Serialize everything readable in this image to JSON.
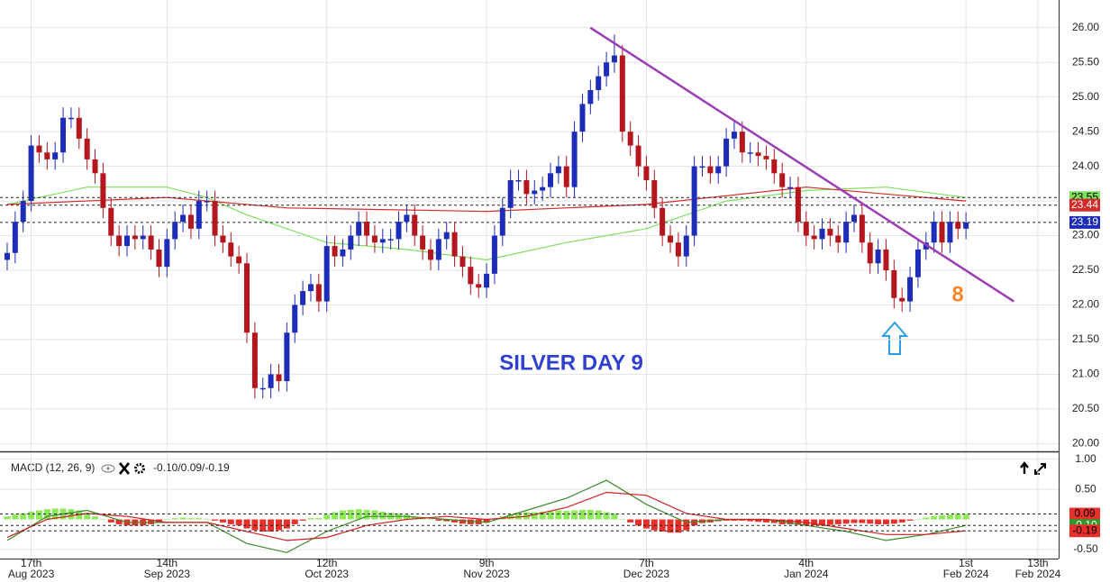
{
  "chart_data": [
    {
      "type": "candlestick",
      "annotations": [
        {
          "text": "SILVER DAY 9",
          "color": "#2f3fd0"
        },
        {
          "text": "8",
          "color": "#f5862a"
        }
      ],
      "open": [
        22.65,
        22.75,
        23.2,
        23.5,
        24.3,
        24.2,
        24.1,
        24.2,
        24.7,
        24.7,
        24.4,
        24.1,
        23.9,
        23.4,
        23.0,
        22.85,
        23.0,
        22.95,
        23.0,
        22.8,
        22.55,
        22.95,
        23.2,
        23.3,
        23.1,
        23.5,
        23.5,
        23.0,
        22.9,
        22.7,
        22.6,
        21.6,
        20.8,
        20.8,
        21.0,
        20.9,
        21.6,
        22.0,
        22.2,
        22.3,
        22.05,
        22.85,
        22.7,
        22.8,
        23.0,
        23.2,
        23.0,
        22.9,
        22.95,
        22.95,
        23.2,
        23.3,
        23.0,
        22.8,
        22.65,
        22.95,
        23.05,
        22.7,
        22.55,
        22.3,
        22.25,
        22.45,
        23.0,
        23.4,
        23.8,
        23.8,
        23.6,
        23.65,
        23.7,
        23.9,
        24.0,
        23.7,
        24.5,
        24.9,
        25.1,
        25.3,
        25.5,
        25.6,
        24.5,
        24.3,
        24.0,
        23.8,
        23.4,
        23.0,
        22.9,
        22.7,
        23.0,
        24.0,
        24.0,
        23.9,
        24.0,
        24.4,
        24.5,
        24.2,
        24.2,
        24.15,
        24.1,
        23.9,
        23.7,
        23.7,
        23.2,
        23.0,
        22.95,
        23.1,
        23.0,
        22.9,
        23.2,
        23.3,
        22.9,
        22.6,
        22.8,
        22.5,
        22.1,
        22.05,
        22.4,
        22.8,
        22.9,
        23.2,
        22.9,
        23.2,
        23.1
      ],
      "high": [
        22.9,
        23.35,
        23.65,
        24.45,
        24.45,
        24.35,
        24.35,
        24.85,
        24.85,
        24.85,
        24.55,
        24.25,
        24.05,
        23.55,
        23.15,
        23.15,
        23.15,
        23.15,
        23.15,
        22.95,
        23.1,
        23.35,
        23.45,
        23.45,
        23.65,
        23.65,
        23.65,
        23.15,
        23.05,
        22.85,
        22.75,
        21.75,
        20.95,
        21.15,
        21.15,
        21.75,
        22.15,
        22.35,
        22.45,
        22.45,
        23.0,
        23.0,
        22.95,
        23.15,
        23.35,
        23.35,
        23.15,
        23.1,
        23.1,
        23.35,
        23.45,
        23.45,
        23.15,
        22.95,
        23.1,
        23.2,
        23.2,
        22.85,
        22.7,
        22.45,
        22.6,
        23.15,
        23.55,
        23.95,
        23.95,
        23.95,
        23.8,
        23.85,
        24.05,
        24.15,
        24.15,
        24.65,
        25.05,
        25.25,
        25.45,
        25.65,
        25.9,
        25.75,
        24.65,
        24.45,
        24.15,
        23.95,
        23.55,
        23.15,
        23.05,
        23.15,
        24.15,
        24.15,
        24.15,
        24.15,
        24.55,
        24.65,
        24.65,
        24.35,
        24.35,
        24.3,
        24.25,
        24.05,
        23.85,
        23.85,
        23.35,
        23.15,
        23.25,
        23.25,
        23.15,
        23.35,
        23.45,
        23.45,
        23.05,
        22.95,
        22.95,
        22.65,
        22.25,
        22.55,
        22.95,
        23.05,
        23.35,
        23.35,
        23.35,
        23.35,
        23.34
      ],
      "low": [
        22.5,
        22.6,
        23.05,
        23.35,
        24.05,
        23.95,
        23.95,
        24.05,
        24.55,
        24.25,
        23.95,
        23.75,
        23.25,
        22.85,
        22.7,
        22.7,
        22.8,
        22.8,
        22.65,
        22.4,
        22.4,
        22.8,
        23.05,
        22.95,
        22.95,
        23.35,
        22.85,
        22.75,
        22.55,
        22.45,
        21.45,
        20.65,
        20.65,
        20.65,
        20.75,
        20.75,
        21.45,
        21.85,
        22.05,
        21.9,
        21.9,
        22.55,
        22.55,
        22.65,
        22.85,
        22.85,
        22.75,
        22.75,
        22.8,
        22.8,
        23.05,
        22.85,
        22.65,
        22.5,
        22.5,
        22.8,
        22.55,
        22.4,
        22.15,
        22.1,
        22.1,
        22.3,
        22.85,
        23.25,
        23.65,
        23.45,
        23.45,
        23.5,
        23.55,
        23.75,
        23.55,
        23.55,
        24.35,
        24.75,
        24.95,
        25.15,
        25.35,
        24.35,
        24.15,
        23.85,
        23.65,
        23.25,
        22.85,
        22.75,
        22.55,
        22.55,
        22.85,
        23.85,
        23.75,
        23.75,
        23.85,
        24.25,
        24.05,
        24.05,
        24.0,
        23.95,
        23.75,
        23.55,
        23.55,
        23.05,
        22.85,
        22.8,
        22.8,
        22.85,
        22.75,
        22.75,
        23.05,
        22.75,
        22.45,
        22.45,
        22.35,
        21.95,
        21.9,
        21.9,
        22.25,
        22.65,
        22.75,
        22.75,
        22.75,
        22.95,
        22.95
      ],
      "close": [
        22.75,
        23.2,
        23.5,
        24.3,
        24.2,
        24.1,
        24.2,
        24.7,
        24.7,
        24.4,
        24.1,
        23.9,
        23.4,
        23.0,
        22.85,
        23.0,
        22.95,
        23.0,
        22.8,
        22.55,
        22.95,
        23.2,
        23.3,
        23.1,
        23.5,
        23.5,
        23.0,
        22.9,
        22.7,
        22.6,
        21.6,
        20.8,
        20.8,
        21.0,
        20.9,
        21.6,
        22.0,
        22.2,
        22.3,
        22.05,
        22.85,
        22.7,
        22.8,
        23.0,
        23.2,
        23.0,
        22.9,
        22.95,
        22.95,
        23.2,
        23.3,
        23.0,
        22.8,
        22.65,
        22.95,
        23.05,
        22.7,
        22.55,
        22.3,
        22.25,
        22.45,
        23.0,
        23.4,
        23.8,
        23.8,
        23.6,
        23.65,
        23.7,
        23.9,
        24.0,
        23.7,
        24.5,
        24.9,
        25.1,
        25.3,
        25.5,
        25.6,
        24.5,
        24.3,
        24.0,
        23.8,
        23.4,
        23.0,
        22.9,
        22.7,
        23.0,
        24.0,
        24.0,
        23.9,
        24.0,
        24.4,
        24.5,
        24.2,
        24.2,
        24.15,
        24.1,
        23.9,
        23.7,
        23.7,
        23.2,
        23.0,
        22.95,
        23.1,
        23.0,
        22.9,
        23.2,
        23.3,
        22.9,
        22.6,
        22.8,
        22.5,
        22.1,
        22.05,
        22.4,
        22.8,
        22.9,
        23.2,
        22.9,
        23.2,
        23.1,
        23.19
      ],
      "up_color": "#1e2db8",
      "down_color": "#b3161c",
      "xlim": [
        -0.9,
        131.6
      ],
      "xticks": [
        {
          "value": 3,
          "label": "17th",
          "sublabel": "Aug 2023"
        },
        {
          "value": 20,
          "label": "14th",
          "sublabel": "Sep 2023"
        },
        {
          "value": 40,
          "label": "12th",
          "sublabel": "Oct 2023"
        },
        {
          "value": 60,
          "label": "9th",
          "sublabel": "Nov 2023"
        },
        {
          "value": 80,
          "label": "7th",
          "sublabel": "Dec 2023"
        },
        {
          "value": 100,
          "label": "4th",
          "sublabel": "Jan 2024"
        },
        {
          "value": 120,
          "label": "1st",
          "sublabel": "Feb 2024"
        },
        {
          "value": 129,
          "label": "13th",
          "sublabel": "Feb 2024"
        }
      ],
      "ylim": [
        19.9,
        26.4
      ],
      "yticks": [
        {
          "value": 20,
          "label": "20.00"
        },
        {
          "value": 20.5,
          "label": "20.50"
        },
        {
          "value": 21,
          "label": "21.00"
        },
        {
          "value": 21.5,
          "label": "21.50"
        },
        {
          "value": 22,
          "label": "22.00"
        },
        {
          "value": 22.5,
          "label": "22.50"
        },
        {
          "value": 23,
          "label": "23.00"
        },
        {
          "value": 23.5,
          "label": "23.50"
        },
        {
          "value": 24,
          "label": "24.00"
        },
        {
          "value": 24.5,
          "label": "24.50"
        },
        {
          "value": 25,
          "label": "25.00"
        },
        {
          "value": 25.5,
          "label": "25.50"
        },
        {
          "value": 26,
          "label": "26.00"
        }
      ],
      "grid": true,
      "overlays": [
        {
          "color": "#7ee05c",
          "x": [
            0,
            10,
            20,
            25,
            30,
            40,
            50,
            60,
            70,
            80,
            90,
            100,
            110,
            120
          ],
          "values": [
            23.45,
            23.7,
            23.7,
            23.55,
            23.3,
            22.9,
            22.8,
            22.65,
            22.9,
            23.1,
            23.5,
            23.65,
            23.7,
            23.55
          ]
        },
        {
          "color": "#d42a2a",
          "x": [
            0,
            20,
            35,
            60,
            80,
            100,
            120
          ],
          "values": [
            23.45,
            23.55,
            23.4,
            23.35,
            23.45,
            23.7,
            23.5
          ]
        }
      ],
      "trendline": {
        "color": "#9b3fb5",
        "x": [
          73,
          126
        ],
        "values": [
          26.0,
          22.05
        ]
      },
      "price_tags": [
        {
          "value": 23.55,
          "color": "#7ee05c",
          "text_color": "#000"
        },
        {
          "value": 23.44,
          "color": "#d42a2a",
          "text_color": "#fff"
        },
        {
          "value": 23.19,
          "color": "#1e2db8",
          "text_color": "#fff"
        }
      ]
    },
    {
      "type": "macd",
      "title": "MACD (12, 26, 9)",
      "readout": "-0.10/0.09/-0.19",
      "xlim": [
        -0.9,
        131.6
      ],
      "xticks": [
        3,
        20,
        40,
        60,
        80,
        100,
        120,
        129
      ],
      "ylim": [
        -0.65,
        1.1
      ],
      "yticks": [
        {
          "value": 1,
          "label": "1.00"
        },
        {
          "value": 0.5,
          "label": "0.50"
        },
        {
          "value": -0.5,
          "label": "-0.50"
        }
      ],
      "histogram": [
        0.05,
        0.08,
        0.1,
        0.13,
        0.15,
        0.17,
        0.18,
        0.18,
        0.17,
        0.15,
        0.1,
        0.05,
        0.0,
        -0.05,
        -0.08,
        -0.1,
        -0.1,
        -0.1,
        -0.08,
        -0.05,
        0.0,
        0.02,
        0.03,
        0.02,
        0.02,
        0.01,
        -0.02,
        -0.05,
        -0.08,
        -0.1,
        -0.15,
        -0.18,
        -0.2,
        -0.2,
        -0.18,
        -0.15,
        -0.08,
        -0.02,
        0.02,
        0.02,
        0.08,
        0.12,
        0.15,
        0.16,
        0.17,
        0.16,
        0.15,
        0.13,
        0.11,
        0.1,
        0.08,
        0.05,
        0.02,
        0.0,
        -0.02,
        -0.03,
        -0.05,
        -0.07,
        -0.08,
        -0.08,
        -0.05,
        0.0,
        0.05,
        0.08,
        0.1,
        0.12,
        0.12,
        0.13,
        0.14,
        0.15,
        0.14,
        0.15,
        0.16,
        0.16,
        0.15,
        0.12,
        0.1,
        0.0,
        -0.05,
        -0.1,
        -0.15,
        -0.18,
        -0.2,
        -0.22,
        -0.22,
        -0.18,
        -0.1,
        -0.06,
        -0.05,
        -0.03,
        -0.02,
        -0.02,
        -0.02,
        -0.03,
        -0.04,
        -0.05,
        -0.06,
        -0.08,
        -0.08,
        -0.09,
        -0.1,
        -0.1,
        -0.1,
        -0.09,
        -0.08,
        -0.07,
        -0.06,
        -0.06,
        -0.07,
        -0.08,
        -0.08,
        -0.07,
        -0.05,
        -0.02,
        0.0,
        0.03,
        0.06,
        0.07,
        0.08,
        0.09,
        0.09
      ],
      "positive_color": "#8ee85a",
      "negative_color": "#e8302a",
      "series": [
        {
          "color": "#3a8a2a",
          "x": [
            0,
            5,
            10,
            15,
            20,
            25,
            30,
            35,
            40,
            45,
            50,
            55,
            60,
            65,
            70,
            75,
            80,
            85,
            90,
            95,
            100,
            105,
            110,
            115,
            120
          ],
          "values": [
            -0.35,
            0.05,
            0.15,
            -0.05,
            -0.05,
            -0.05,
            -0.4,
            -0.55,
            -0.2,
            0.05,
            0.05,
            0.0,
            -0.05,
            0.15,
            0.35,
            0.65,
            0.25,
            -0.05,
            0.0,
            0.0,
            -0.1,
            -0.2,
            -0.35,
            -0.25,
            -0.1
          ]
        },
        {
          "color": "#d02020",
          "x": [
            0,
            5,
            10,
            15,
            20,
            25,
            30,
            35,
            40,
            45,
            50,
            55,
            60,
            65,
            70,
            75,
            80,
            85,
            90,
            95,
            100,
            105,
            110,
            115,
            120
          ],
          "values": [
            -0.3,
            0.0,
            0.1,
            0.05,
            -0.05,
            -0.05,
            -0.2,
            -0.35,
            -0.3,
            -0.1,
            0.0,
            0.05,
            0.0,
            0.05,
            0.2,
            0.45,
            0.4,
            0.1,
            0.0,
            0.0,
            -0.05,
            -0.15,
            -0.25,
            -0.25,
            -0.19
          ]
        }
      ],
      "price_tags": [
        {
          "value": 0.09,
          "color": "#e8302a",
          "text_color": "#000"
        },
        {
          "value": -0.1,
          "label": "-0.10",
          "color": "#2e9a2e",
          "text_color": "#fff"
        },
        {
          "value": -0.19,
          "color": "#e8302a",
          "text_color": "#000"
        }
      ]
    }
  ]
}
